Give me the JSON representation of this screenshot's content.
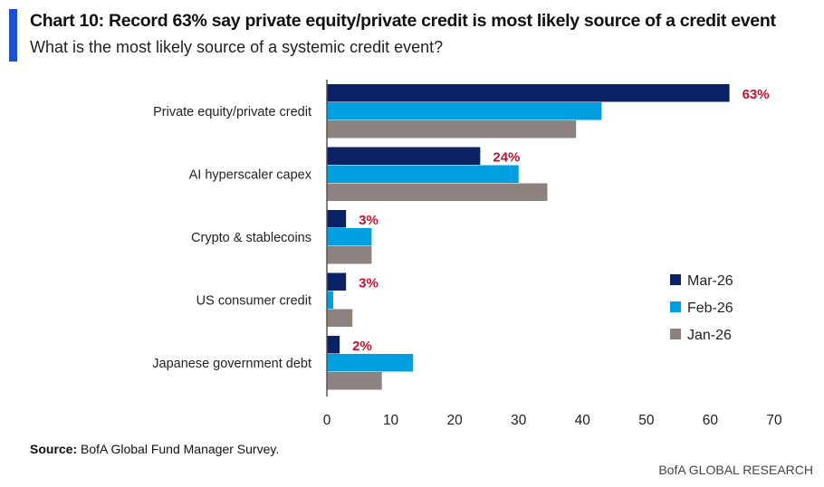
{
  "title": "Chart 10: Record 63% say private equity/private credit is most likely source of a credit event",
  "subtitle": "What is the most likely source of a systemic credit event?",
  "source_label": "Source:",
  "source_text": "BofA Global Fund Manager Survey.",
  "brand": "BofA GLOBAL RESEARCH",
  "chart_data": {
    "type": "bar",
    "orientation": "horizontal",
    "categories": [
      "Private equity/private credit",
      "AI hyperscaler capex",
      "Crypto & stablecoins",
      "US consumer credit",
      "Japanese government debt"
    ],
    "series": [
      {
        "name": "Mar-26",
        "color": "#0b2265",
        "values": [
          63,
          24,
          3,
          3,
          2
        ]
      },
      {
        "name": "Feb-26",
        "color": "#009fdf",
        "values": [
          43,
          30,
          7,
          1,
          13.5
        ]
      },
      {
        "name": "Jan-26",
        "color": "#8c8280",
        "values": [
          39,
          34.5,
          7,
          4,
          8.6
        ]
      }
    ],
    "data_labels": [
      "63%",
      "24%",
      "3%",
      "3%",
      "2%"
    ],
    "data_label_color": "#c8102e",
    "xlim": [
      0,
      70
    ],
    "xticks": [
      0,
      10,
      20,
      30,
      40,
      50,
      60,
      70
    ],
    "grid": false,
    "legend_position": "right"
  }
}
